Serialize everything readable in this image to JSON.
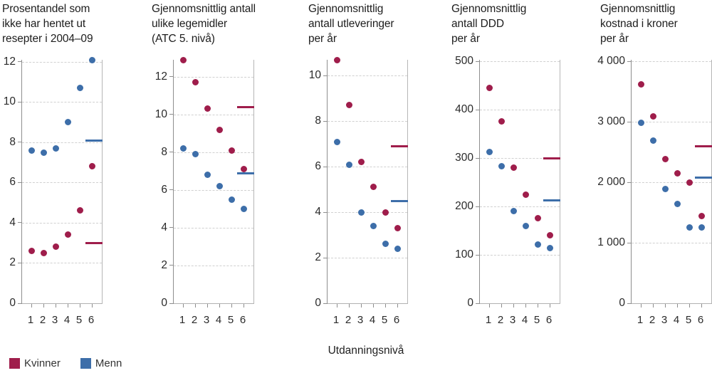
{
  "figure": {
    "xlabel": "Utdanningsnivå",
    "legend": [
      {
        "label": "Kvinner",
        "color": "#9f1d4b"
      },
      {
        "label": "Menn",
        "color": "#3d6ea9"
      }
    ]
  },
  "colors": {
    "kvinner": "#9f1d4b",
    "menn": "#3d6ea9",
    "gridline": "#d0d0d0",
    "axis": "#8e8e8e",
    "text": "#1d1d1d"
  },
  "chart_data": [
    {
      "type": "scatter",
      "title": "Prosentandel som ikke har hentet ut resepter i 2004–09",
      "title_lines": [
        "Prosentandel som",
        "ikke har hentet ut",
        "resepter i 2004–09"
      ],
      "xlabel": "Utdanningsnivå",
      "categories": [
        "1",
        "2",
        "3",
        "4",
        "5",
        "6"
      ],
      "yticks": [
        0,
        2,
        4,
        6,
        8,
        10,
        12
      ],
      "ytick_labels": [
        "0",
        "2",
        "4",
        "6",
        "8",
        "10",
        "12"
      ],
      "ylim": [
        0,
        12.1
      ],
      "grid": "dashed-horizontal",
      "legend_position": "bottom",
      "series": [
        {
          "name": "Kvinner",
          "color": "#9f1d4b",
          "values": [
            2.6,
            2.5,
            2.8,
            3.4,
            4.6,
            6.8
          ],
          "mean": 3.0
        },
        {
          "name": "Menn",
          "color": "#3d6ea9",
          "values": [
            7.6,
            7.5,
            7.7,
            9.0,
            10.7,
            12.1
          ],
          "mean": 8.1
        }
      ]
    },
    {
      "type": "scatter",
      "title": "Gjennomsnittlig antall ulike legemidler (ATC 5. nivå)",
      "title_lines": [
        "Gjennomsnittlig antall",
        "ulike legemidler",
        "(ATC 5. nivå)"
      ],
      "xlabel": "Utdanningsnivå",
      "categories": [
        "1",
        "2",
        "3",
        "4",
        "5",
        "6"
      ],
      "yticks": [
        0,
        2,
        4,
        6,
        8,
        10,
        12
      ],
      "ytick_labels": [
        "0",
        "2",
        "4",
        "6",
        "8",
        "10",
        "12"
      ],
      "ylim": [
        0,
        12.9
      ],
      "grid": "dashed-horizontal",
      "legend_position": "bottom",
      "series": [
        {
          "name": "Kvinner",
          "color": "#9f1d4b",
          "values": [
            12.9,
            11.7,
            10.3,
            9.2,
            8.1,
            7.1
          ],
          "mean": 10.4
        },
        {
          "name": "Menn",
          "color": "#3d6ea9",
          "values": [
            8.2,
            7.9,
            6.8,
            6.2,
            5.5,
            5.0
          ],
          "mean": 6.9
        }
      ]
    },
    {
      "type": "scatter",
      "title": "Gjennomsnittlig antall utleveringer per år",
      "title_lines": [
        "Gjennomsnittlig",
        "antall utleveringer",
        "per år"
      ],
      "xlabel": "Utdanningsnivå",
      "categories": [
        "1",
        "2",
        "3",
        "4",
        "5",
        "6"
      ],
      "yticks": [
        0,
        2,
        4,
        6,
        8,
        10
      ],
      "ytick_labels": [
        "0",
        "2",
        "4",
        "6",
        "8",
        "10"
      ],
      "ylim": [
        0,
        10.7
      ],
      "grid": "dashed-horizontal",
      "legend_position": "bottom",
      "series": [
        {
          "name": "Kvinner",
          "color": "#9f1d4b",
          "values": [
            10.7,
            8.7,
            6.2,
            5.1,
            4.0,
            3.3
          ],
          "mean": 6.9
        },
        {
          "name": "Menn",
          "color": "#3d6ea9",
          "values": [
            7.1,
            6.1,
            4.0,
            3.4,
            2.6,
            2.4
          ],
          "mean": 4.5
        }
      ]
    },
    {
      "type": "scatter",
      "title": "Gjennomsnittlig antall DDD per år",
      "title_lines": [
        "Gjennomsnittlig",
        "antall DDD",
        "per år"
      ],
      "xlabel": "Utdanningsnivå",
      "categories": [
        "1",
        "2",
        "3",
        "4",
        "5",
        "6"
      ],
      "yticks": [
        0,
        100,
        200,
        300,
        400,
        500
      ],
      "ytick_labels": [
        "0",
        "100",
        "200",
        "300",
        "400",
        "500"
      ],
      "ylim": [
        0,
        503
      ],
      "grid": "dashed-horizontal",
      "legend_position": "bottom",
      "series": [
        {
          "name": "Kvinner",
          "color": "#9f1d4b",
          "values": [
            445,
            376,
            280,
            224,
            176,
            140
          ],
          "mean": 300
        },
        {
          "name": "Menn",
          "color": "#3d6ea9",
          "values": [
            312,
            283,
            191,
            160,
            122,
            114
          ],
          "mean": 212
        }
      ]
    },
    {
      "type": "scatter",
      "title": "Gjennomsnittlig kostnad i kroner per år",
      "title_lines": [
        "Gjennomsnittlig",
        "kostnad i kroner",
        "per år"
      ],
      "xlabel": "Utdanningsnivå",
      "categories": [
        "1",
        "2",
        "3",
        "4",
        "5",
        "6"
      ],
      "yticks": [
        0,
        1000,
        2000,
        3000,
        4000
      ],
      "ytick_labels": [
        "0",
        "1 000",
        "2 000",
        "3 000",
        "4 000"
      ],
      "ylim": [
        0,
        4025
      ],
      "grid": "dashed-horizontal",
      "legend_position": "bottom",
      "series": [
        {
          "name": "Kvinner",
          "color": "#9f1d4b",
          "values": [
            3620,
            3090,
            2380,
            2150,
            2000,
            1440
          ],
          "mean": 2600
        },
        {
          "name": "Menn",
          "color": "#3d6ea9",
          "values": [
            2980,
            2690,
            1890,
            1640,
            1250,
            1250
          ],
          "mean": 2080
        }
      ]
    }
  ]
}
